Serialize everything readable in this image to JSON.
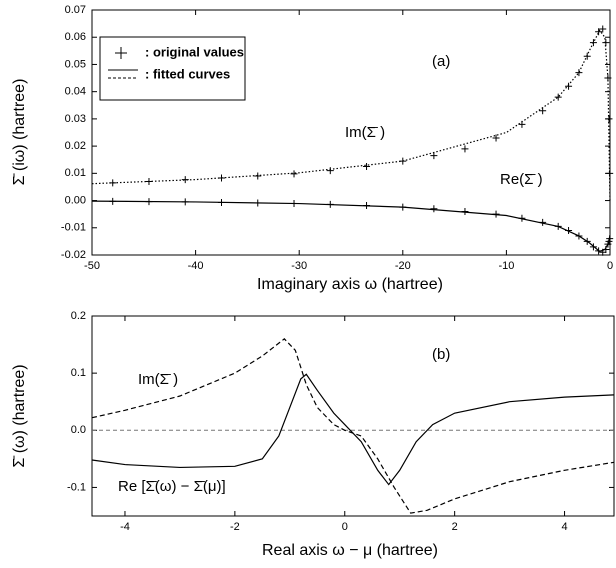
{
  "chart_data": [
    {
      "type": "line",
      "panel_label": "(a)",
      "x_label": "Imaginary axis  ω  (hartree)",
      "y_label": "Σ̄ (iω) (hartree)",
      "xlim": [
        -50,
        0
      ],
      "ylim": [
        -0.02,
        0.07
      ],
      "xticks": [
        -50,
        -40,
        -30,
        -20,
        -10,
        0
      ],
      "yticks": [
        -0.02,
        -0.01,
        {
          "value": 0,
          "label": "0.00"
        },
        0.01,
        0.02,
        0.03,
        0.04,
        0.05,
        0.06,
        0.07
      ],
      "legend": [
        {
          "label": ": original values",
          "marker": "+"
        },
        {
          "label": ": fitted curves",
          "line_style": "solid"
        }
      ],
      "annotations": [
        "Im(Σ̄ )",
        "Re(Σ̄ )"
      ],
      "series": [
        {
          "color": "#000000",
          "marker": "+",
          "x": [
            -48,
            -44.5,
            -41,
            -37.5,
            -34,
            -30.5,
            -27,
            -23.5,
            -20,
            -17,
            -14,
            -11,
            -8.5,
            -6.5,
            -5,
            -4,
            -3,
            -2.2,
            -1.6,
            -1.1,
            -0.7,
            -0.4,
            -0.2,
            -0.1,
            -0.03
          ],
          "values": [
            0.0065,
            0.007,
            0.0077,
            0.0083,
            0.009,
            0.0098,
            0.011,
            0.0125,
            0.0145,
            0.0165,
            0.019,
            0.023,
            0.028,
            0.033,
            0.038,
            0.042,
            0.047,
            0.053,
            0.058,
            0.062,
            0.063,
            0.058,
            0.045,
            0.03,
            0.01
          ]
        },
        {
          "color": "#000000",
          "marker": "+",
          "x": [
            -48,
            -44.5,
            -41,
            -37.5,
            -34,
            -30.5,
            -27,
            -23.5,
            -20,
            -17,
            -14,
            -11,
            -8.5,
            -6.5,
            -5,
            -4,
            -3,
            -2.2,
            -1.6,
            -1.1,
            -0.7,
            -0.4,
            -0.2,
            -0.1,
            -0.03
          ],
          "values": [
            -0.0003,
            -0.0004,
            -0.0005,
            -0.0007,
            -0.0009,
            -0.0011,
            -0.0014,
            -0.0018,
            -0.0024,
            -0.003,
            -0.004,
            -0.005,
            -0.0065,
            -0.008,
            -0.0095,
            -0.011,
            -0.013,
            -0.015,
            -0.017,
            -0.0185,
            -0.019,
            -0.018,
            -0.016,
            -0.015,
            -0.014
          ]
        },
        {
          "color": "#000000",
          "line_style": "dotted",
          "x": [
            -50,
            -40,
            -30,
            -20,
            -10,
            -5,
            -3,
            -2,
            -1,
            -0.5,
            -0.2,
            0
          ],
          "values": [
            0.0062,
            0.0077,
            0.0102,
            0.0145,
            0.025,
            0.038,
            0.047,
            0.055,
            0.0625,
            0.06,
            0.045,
            0
          ]
        },
        {
          "color": "#000000",
          "line_style": "solid",
          "x": [
            -50,
            -40,
            -30,
            -20,
            -10,
            -5,
            -3,
            -2,
            -1,
            -0.5,
            -0.2,
            0
          ],
          "values": [
            -0.0002,
            -0.0005,
            -0.0011,
            -0.0024,
            -0.0055,
            -0.0095,
            -0.013,
            -0.0155,
            -0.0187,
            -0.018,
            -0.016,
            -0.013
          ]
        }
      ]
    },
    {
      "type": "line",
      "panel_label": "(b)",
      "x_label": "Real axis  ω − μ  (hartree)",
      "y_label": "Σ̄ (ω) (hartree)",
      "xlim": [
        -4.6,
        4.9
      ],
      "ylim": [
        -0.15,
        0.2
      ],
      "xticks": [
        -4,
        -2,
        0,
        2,
        4
      ],
      "yticks": [
        -0.1,
        {
          "value": 0,
          "label": "0.0"
        },
        0.1,
        0.2
      ],
      "hlines": [
        0
      ],
      "annotations": [
        "Im(Σ̄ )",
        "Re [Σ̄(ω) − Σ̄(μ)]"
      ],
      "series": [
        {
          "color": "#000000",
          "line_style": "dashed",
          "x": [
            -4.6,
            -4,
            -3,
            -2,
            -1.5,
            -1.1,
            -0.9,
            -0.7,
            -0.5,
            -0.2,
            0,
            0.3,
            0.6,
            0.9,
            1.2,
            1.5,
            2,
            3,
            4,
            4.9
          ],
          "values": [
            0.022,
            0.035,
            0.06,
            0.1,
            0.13,
            0.16,
            0.14,
            0.08,
            0.04,
            0.01,
            0,
            -0.01,
            -0.05,
            -0.1,
            -0.145,
            -0.14,
            -0.12,
            -0.09,
            -0.07,
            -0.056
          ]
        },
        {
          "color": "#000000",
          "line_style": "solid",
          "x": [
            -4.6,
            -4,
            -3,
            -2,
            -1.5,
            -1.2,
            -1,
            -0.8,
            -0.7,
            -0.5,
            -0.2,
            0,
            0.3,
            0.6,
            0.8,
            1,
            1.3,
            1.6,
            2,
            3,
            4,
            4.9
          ],
          "values": [
            -0.052,
            -0.06,
            -0.065,
            -0.063,
            -0.05,
            -0.01,
            0.04,
            0.09,
            0.098,
            0.07,
            0.03,
            0.01,
            -0.02,
            -0.07,
            -0.095,
            -0.07,
            -0.02,
            0.01,
            0.03,
            0.05,
            0.058,
            0.062
          ]
        }
      ]
    }
  ]
}
